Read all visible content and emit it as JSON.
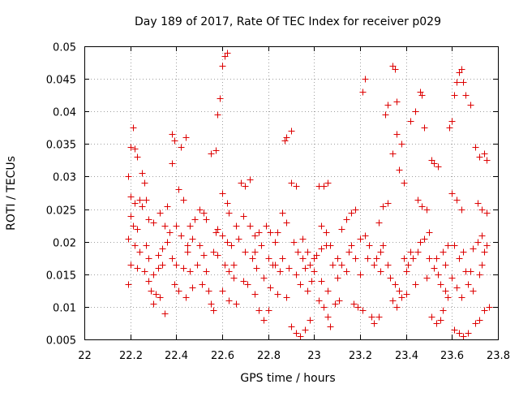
{
  "chart_data": {
    "type": "scatter",
    "title": "Day 189 of 2017, Rate Of TEC Index for receiver p029",
    "xlabel": "GPS time / hours",
    "ylabel": "ROTI / TECUs",
    "xlim": [
      22,
      23.8
    ],
    "ylim": [
      0.005,
      0.05
    ],
    "xticks": [
      "22",
      "22.2",
      "22.4",
      "22.6",
      "22.8",
      "23",
      "23.2",
      "23.4",
      "23.6",
      "23.8"
    ],
    "yticks": [
      "0.005",
      "0.01",
      "0.015",
      "0.02",
      "0.025",
      "0.03",
      "0.035",
      "0.04",
      "0.045",
      "0.05"
    ],
    "marker": "plus",
    "marker_color": "#dd0000",
    "grid": true,
    "series": [
      {
        "name": "ROTI",
        "points": [
          [
            22.21,
            0.0375
          ],
          [
            22.2,
            0.0345
          ],
          [
            22.22,
            0.0343
          ],
          [
            22.23,
            0.033
          ],
          [
            22.19,
            0.03
          ],
          [
            22.25,
            0.0305
          ],
          [
            22.26,
            0.029
          ],
          [
            22.2,
            0.027
          ],
          [
            22.22,
            0.026
          ],
          [
            22.25,
            0.0255
          ],
          [
            22.27,
            0.0265
          ],
          [
            22.2,
            0.024
          ],
          [
            22.21,
            0.0225
          ],
          [
            22.23,
            0.022
          ],
          [
            22.19,
            0.0205
          ],
          [
            22.22,
            0.0195
          ],
          [
            22.24,
            0.0185
          ],
          [
            22.2,
            0.0165
          ],
          [
            22.23,
            0.016
          ],
          [
            22.26,
            0.0155
          ],
          [
            22.19,
            0.0135
          ],
          [
            22.28,
            0.014
          ],
          [
            22.3,
            0.015
          ],
          [
            22.32,
            0.016
          ],
          [
            22.29,
            0.0125
          ],
          [
            22.31,
            0.012
          ],
          [
            22.33,
            0.0115
          ],
          [
            22.3,
            0.0105
          ],
          [
            22.35,
            0.009
          ],
          [
            22.28,
            0.0175
          ],
          [
            22.32,
            0.018
          ],
          [
            22.34,
            0.019
          ],
          [
            22.36,
            0.02
          ],
          [
            22.3,
            0.023
          ],
          [
            22.33,
            0.0245
          ],
          [
            22.36,
            0.0255
          ],
          [
            22.38,
            0.0365
          ],
          [
            22.39,
            0.0355
          ],
          [
            22.42,
            0.0345
          ],
          [
            22.44,
            0.036
          ],
          [
            22.38,
            0.032
          ],
          [
            22.41,
            0.028
          ],
          [
            22.43,
            0.0265
          ],
          [
            22.4,
            0.0225
          ],
          [
            22.42,
            0.021
          ],
          [
            22.45,
            0.0195
          ],
          [
            22.38,
            0.0175
          ],
          [
            22.4,
            0.0165
          ],
          [
            22.43,
            0.016
          ],
          [
            22.46,
            0.0155
          ],
          [
            22.39,
            0.0135
          ],
          [
            22.41,
            0.0125
          ],
          [
            22.44,
            0.0115
          ],
          [
            22.47,
            0.013
          ],
          [
            22.48,
            0.0235
          ],
          [
            22.5,
            0.025
          ],
          [
            22.52,
            0.0245
          ],
          [
            22.5,
            0.0195
          ],
          [
            22.52,
            0.018
          ],
          [
            22.49,
            0.0165
          ],
          [
            22.53,
            0.0155
          ],
          [
            22.51,
            0.0135
          ],
          [
            22.54,
            0.0125
          ],
          [
            22.55,
            0.0105
          ],
          [
            22.56,
            0.0095
          ],
          [
            22.55,
            0.0335
          ],
          [
            22.57,
            0.034
          ],
          [
            22.58,
            0.0395
          ],
          [
            22.59,
            0.042
          ],
          [
            22.6,
            0.047
          ],
          [
            22.61,
            0.0485
          ],
          [
            22.62,
            0.049
          ],
          [
            22.6,
            0.0275
          ],
          [
            22.62,
            0.026
          ],
          [
            22.63,
            0.0245
          ],
          [
            22.58,
            0.022
          ],
          [
            22.6,
            0.021
          ],
          [
            22.62,
            0.02
          ],
          [
            22.64,
            0.0195
          ],
          [
            22.58,
            0.018
          ],
          [
            22.61,
            0.0165
          ],
          [
            22.63,
            0.0155
          ],
          [
            22.65,
            0.0145
          ],
          [
            22.6,
            0.0125
          ],
          [
            22.63,
            0.011
          ],
          [
            22.66,
            0.0105
          ],
          [
            22.68,
            0.029
          ],
          [
            22.7,
            0.0285
          ],
          [
            22.72,
            0.0295
          ],
          [
            22.69,
            0.024
          ],
          [
            22.72,
            0.0225
          ],
          [
            22.74,
            0.021
          ],
          [
            22.7,
            0.0185
          ],
          [
            22.73,
            0.0175
          ],
          [
            22.75,
            0.016
          ],
          [
            22.69,
            0.014
          ],
          [
            22.71,
            0.0135
          ],
          [
            22.74,
            0.012
          ],
          [
            22.76,
            0.0095
          ],
          [
            22.78,
            0.008
          ],
          [
            22.8,
            0.0095
          ],
          [
            22.79,
            0.0225
          ],
          [
            22.81,
            0.0215
          ],
          [
            22.83,
            0.02
          ],
          [
            22.8,
            0.0175
          ],
          [
            22.82,
            0.0165
          ],
          [
            22.85,
            0.0155
          ],
          [
            22.78,
            0.0145
          ],
          [
            22.81,
            0.013
          ],
          [
            22.84,
            0.012
          ],
          [
            22.86,
            0.0245
          ],
          [
            22.88,
            0.023
          ],
          [
            22.87,
            0.0355
          ],
          [
            22.88,
            0.036
          ],
          [
            22.9,
            0.037
          ],
          [
            22.9,
            0.029
          ],
          [
            22.92,
            0.0285
          ],
          [
            22.91,
            0.02
          ],
          [
            22.93,
            0.0185
          ],
          [
            22.89,
            0.016
          ],
          [
            22.92,
            0.015
          ],
          [
            22.94,
            0.0135
          ],
          [
            22.88,
            0.0115
          ],
          [
            22.9,
            0.007
          ],
          [
            22.92,
            0.006
          ],
          [
            22.94,
            0.0055
          ],
          [
            22.96,
            0.0065
          ],
          [
            22.98,
            0.008
          ],
          [
            22.97,
            0.0125
          ],
          [
            22.99,
            0.014
          ],
          [
            22.96,
            0.016
          ],
          [
            22.98,
            0.0165
          ],
          [
            23.0,
            0.0175
          ],
          [
            23.01,
            0.018
          ],
          [
            23.03,
            0.019
          ],
          [
            23.05,
            0.0195
          ],
          [
            23.02,
            0.0285
          ],
          [
            23.04,
            0.0285
          ],
          [
            23.06,
            0.029
          ],
          [
            23.03,
            0.0225
          ],
          [
            23.05,
            0.0215
          ],
          [
            23.0,
            0.0155
          ],
          [
            23.03,
            0.014
          ],
          [
            23.06,
            0.0125
          ],
          [
            23.02,
            0.011
          ],
          [
            23.04,
            0.01
          ],
          [
            23.06,
            0.0085
          ],
          [
            23.07,
            0.007
          ],
          [
            23.09,
            0.0105
          ],
          [
            23.11,
            0.011
          ],
          [
            23.1,
            0.0175
          ],
          [
            23.12,
            0.0165
          ],
          [
            23.14,
            0.0155
          ],
          [
            23.12,
            0.022
          ],
          [
            23.14,
            0.0235
          ],
          [
            23.16,
            0.0245
          ],
          [
            23.18,
            0.025
          ],
          [
            23.17,
            0.0105
          ],
          [
            23.19,
            0.01
          ],
          [
            23.21,
            0.0095
          ],
          [
            23.2,
            0.015
          ],
          [
            23.21,
            0.043
          ],
          [
            23.22,
            0.045
          ],
          [
            23.2,
            0.0205
          ],
          [
            23.22,
            0.021
          ],
          [
            23.24,
            0.0195
          ],
          [
            23.25,
            0.0085
          ],
          [
            23.26,
            0.0075
          ],
          [
            23.28,
            0.0085
          ],
          [
            23.27,
            0.0175
          ],
          [
            23.29,
            0.0185
          ],
          [
            23.3,
            0.0195
          ],
          [
            23.28,
            0.023
          ],
          [
            23.3,
            0.0255
          ],
          [
            23.32,
            0.026
          ],
          [
            23.31,
            0.0395
          ],
          [
            23.32,
            0.041
          ],
          [
            23.34,
            0.047
          ],
          [
            23.35,
            0.0465
          ],
          [
            23.36,
            0.0415
          ],
          [
            23.34,
            0.0335
          ],
          [
            23.36,
            0.0365
          ],
          [
            23.38,
            0.035
          ],
          [
            23.37,
            0.031
          ],
          [
            23.39,
            0.029
          ],
          [
            23.33,
            0.0145
          ],
          [
            23.35,
            0.0135
          ],
          [
            23.37,
            0.0125
          ],
          [
            23.34,
            0.011
          ],
          [
            23.36,
            0.01
          ],
          [
            23.38,
            0.0115
          ],
          [
            23.4,
            0.012
          ],
          [
            23.41,
            0.0165
          ],
          [
            23.43,
            0.0175
          ],
          [
            23.45,
            0.0185
          ],
          [
            23.42,
            0.0385
          ],
          [
            23.44,
            0.04
          ],
          [
            23.46,
            0.043
          ],
          [
            23.47,
            0.0425
          ],
          [
            23.48,
            0.0375
          ],
          [
            23.45,
            0.0265
          ],
          [
            23.47,
            0.0255
          ],
          [
            23.49,
            0.025
          ],
          [
            23.46,
            0.02
          ],
          [
            23.48,
            0.0205
          ],
          [
            23.5,
            0.0215
          ],
          [
            23.51,
            0.0325
          ],
          [
            23.52,
            0.032
          ],
          [
            23.54,
            0.0315
          ],
          [
            23.5,
            0.0175
          ],
          [
            23.52,
            0.016
          ],
          [
            23.54,
            0.015
          ],
          [
            23.51,
            0.0085
          ],
          [
            23.53,
            0.0075
          ],
          [
            23.55,
            0.008
          ],
          [
            23.56,
            0.0095
          ],
          [
            23.57,
            0.0125
          ],
          [
            23.58,
            0.0115
          ],
          [
            23.56,
            0.0185
          ],
          [
            23.58,
            0.0195
          ],
          [
            23.59,
            0.0375
          ],
          [
            23.6,
            0.0385
          ],
          [
            23.61,
            0.0425
          ],
          [
            23.62,
            0.0445
          ],
          [
            23.63,
            0.046
          ],
          [
            23.64,
            0.0465
          ],
          [
            23.65,
            0.0445
          ],
          [
            23.66,
            0.0425
          ],
          [
            23.68,
            0.041
          ],
          [
            23.6,
            0.0275
          ],
          [
            23.62,
            0.0265
          ],
          [
            23.64,
            0.025
          ],
          [
            23.61,
            0.0195
          ],
          [
            23.63,
            0.0175
          ],
          [
            23.6,
            0.0145
          ],
          [
            23.62,
            0.013
          ],
          [
            23.64,
            0.0115
          ],
          [
            23.61,
            0.0065
          ],
          [
            23.63,
            0.006
          ],
          [
            23.65,
            0.0055
          ],
          [
            23.67,
            0.006
          ],
          [
            23.7,
            0.0075
          ],
          [
            23.72,
            0.008
          ],
          [
            23.7,
            0.0345
          ],
          [
            23.72,
            0.033
          ],
          [
            23.74,
            0.0335
          ],
          [
            23.75,
            0.0325
          ],
          [
            23.71,
            0.026
          ],
          [
            23.73,
            0.025
          ],
          [
            23.75,
            0.0245
          ],
          [
            23.69,
            0.019
          ],
          [
            23.71,
            0.02
          ],
          [
            23.73,
            0.021
          ],
          [
            23.75,
            0.0195
          ],
          [
            23.68,
            0.0155
          ],
          [
            23.72,
            0.015
          ],
          [
            23.74,
            0.0095
          ],
          [
            23.76,
            0.01
          ],
          [
            22.24,
            0.0265
          ],
          [
            22.28,
            0.0235
          ],
          [
            22.35,
            0.0225
          ],
          [
            22.37,
            0.0215
          ],
          [
            22.46,
            0.0225
          ],
          [
            22.47,
            0.0205
          ],
          [
            22.53,
            0.0235
          ],
          [
            22.57,
            0.0215
          ],
          [
            22.66,
            0.0225
          ],
          [
            22.67,
            0.0205
          ],
          [
            22.76,
            0.0215
          ],
          [
            22.77,
            0.0195
          ],
          [
            22.84,
            0.0215
          ],
          [
            22.86,
            0.0175
          ],
          [
            22.95,
            0.0205
          ],
          [
            22.97,
            0.0185
          ],
          [
            23.08,
            0.0165
          ],
          [
            23.1,
            0.0145
          ],
          [
            23.16,
            0.0195
          ],
          [
            23.18,
            0.0175
          ],
          [
            23.26,
            0.0165
          ],
          [
            23.29,
            0.0155
          ],
          [
            23.39,
            0.0175
          ],
          [
            23.4,
            0.0155
          ],
          [
            23.44,
            0.0135
          ],
          [
            23.49,
            0.0145
          ],
          [
            23.55,
            0.0135
          ],
          [
            23.57,
            0.0165
          ],
          [
            23.66,
            0.0155
          ],
          [
            23.67,
            0.0135
          ],
          [
            23.69,
            0.0125
          ],
          [
            23.74,
            0.0185
          ],
          [
            22.27,
            0.0195
          ],
          [
            22.34,
            0.0165
          ],
          [
            22.45,
            0.0185
          ],
          [
            22.56,
            0.0185
          ],
          [
            22.65,
            0.0165
          ],
          [
            22.74,
            0.0185
          ],
          [
            22.83,
            0.0165
          ],
          [
            22.95,
            0.0175
          ],
          [
            23.07,
            0.0195
          ],
          [
            23.15,
            0.0185
          ],
          [
            23.23,
            0.0175
          ],
          [
            23.32,
            0.0165
          ],
          [
            23.42,
            0.0185
          ],
          [
            23.53,
            0.0175
          ],
          [
            23.65,
            0.0185
          ],
          [
            23.73,
            0.0165
          ]
        ]
      }
    ]
  }
}
